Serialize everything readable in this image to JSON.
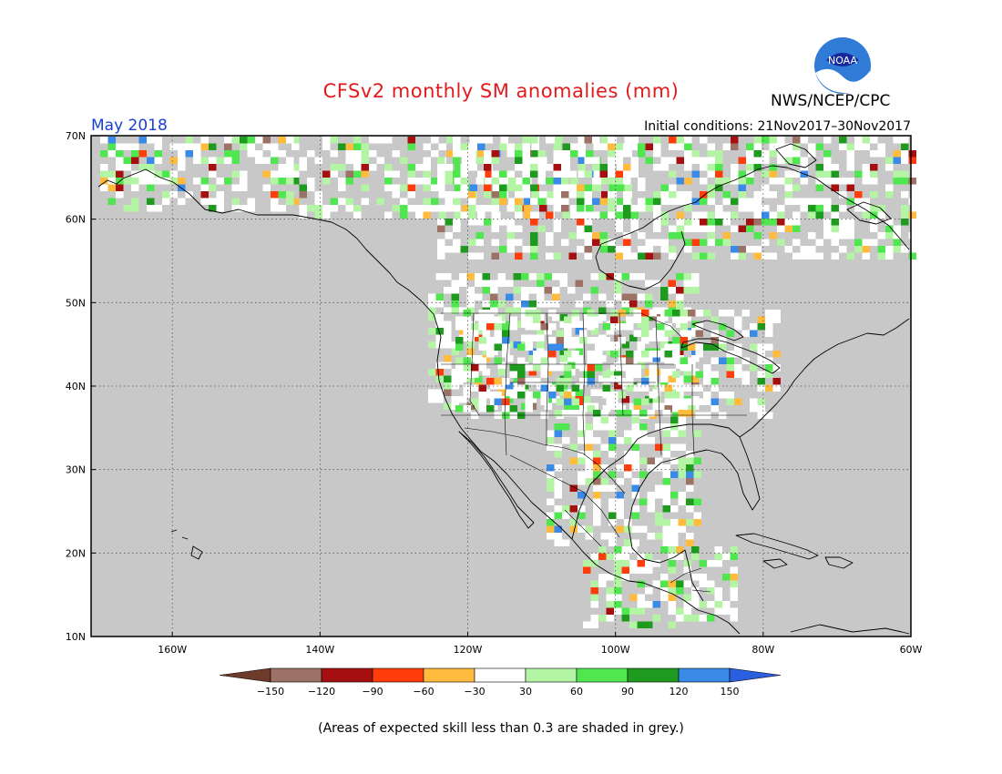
{
  "header": {
    "title": "CFSv2 monthly SM anomalies (mm)",
    "period": "May 2018",
    "initial_conditions": "Initial conditions: 21Nov2017–30Nov2017",
    "agency": "NWS/NCEP/CPC",
    "logo_text": "NOAA"
  },
  "map": {
    "projection": "lat-lon",
    "lon_range": [
      -171,
      -60
    ],
    "lat_range": [
      10,
      70
    ],
    "lat_labels": [
      "10N",
      "20N",
      "30N",
      "40N",
      "50N",
      "60N",
      "70N"
    ],
    "lon_labels": [
      "160W",
      "140W",
      "120W",
      "100W",
      "80W",
      "60W"
    ],
    "gridlines": "dotted",
    "background_color": "#c8c8c8"
  },
  "colorbar": {
    "labels": [
      "−150",
      "−120",
      "−90",
      "−60",
      "−30",
      "30",
      "60",
      "90",
      "120",
      "150"
    ],
    "colors": [
      "#6e3a2a",
      "#9c7266",
      "#a50f0f",
      "#ff3d0a",
      "#ffbb3d",
      "#ffffff",
      "#b4f5a5",
      "#50e650",
      "#1e9b1e",
      "#3a8be8",
      "#2a5fe0"
    ]
  },
  "footnote": "(Areas of expected skill less than 0.3 are shaded in grey.)"
}
